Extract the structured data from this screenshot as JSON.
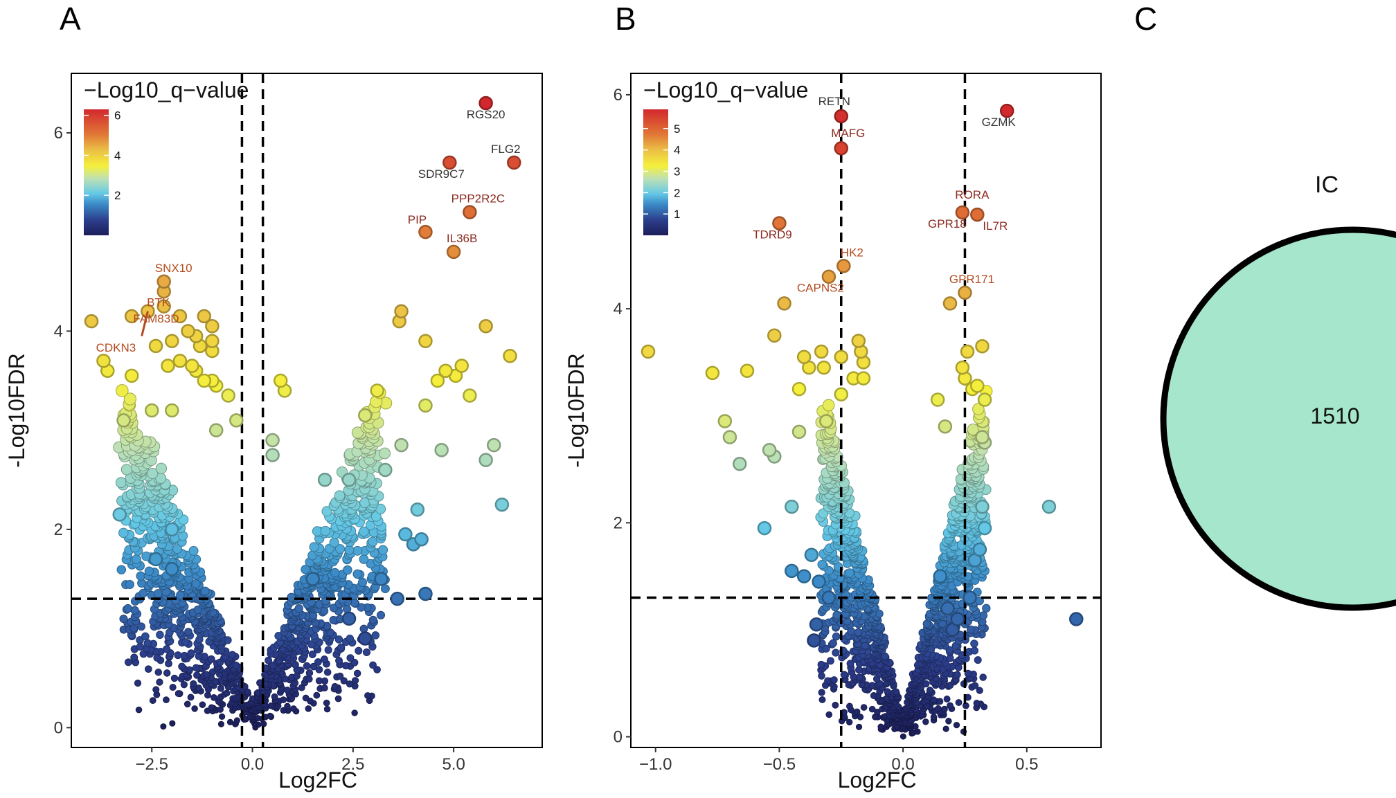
{
  "panels": {
    "a": "A",
    "b": "B",
    "c": "C"
  },
  "chart_data": [
    {
      "type": "scatter",
      "panel": "A",
      "xlabel": "Log2FC",
      "ylabel": "-Log10FDR",
      "xlim": [
        -4.5,
        7.2
      ],
      "ylim": [
        -0.2,
        6.6
      ],
      "xticks": [
        -2.5,
        0.0,
        2.5,
        5.0
      ],
      "xtick_labels": [
        "−2.5",
        "0.0",
        "2.5",
        "5.0"
      ],
      "yticks": [
        0,
        2,
        4,
        6
      ],
      "ytick_labels": [
        "0",
        "2",
        "4",
        "6"
      ],
      "vlines": [
        -0.26,
        0.26
      ],
      "hline": 1.3,
      "legend_title": "−Log10_q−value",
      "legend_ticks": [
        2,
        4,
        6
      ],
      "legend_range": [
        0,
        6.3
      ],
      "points": [
        [
          5.8,
          6.3
        ],
        [
          6.5,
          5.7
        ],
        [
          4.9,
          5.7
        ],
        [
          5.4,
          5.2
        ],
        [
          4.3,
          5.0
        ],
        [
          5.0,
          4.8
        ],
        [
          -2.2,
          4.5
        ],
        [
          -2.2,
          4.4
        ],
        [
          -2.2,
          4.25
        ],
        [
          -2.6,
          4.2
        ],
        [
          -3.0,
          4.15
        ],
        [
          -4.0,
          4.1
        ],
        [
          -1.8,
          4.15
        ],
        [
          -1.2,
          4.15
        ],
        [
          -1.0,
          4.05
        ],
        [
          -1.6,
          4.0
        ],
        [
          -2.0,
          3.9
        ],
        [
          -1.4,
          3.95
        ],
        [
          -1.0,
          3.9
        ],
        [
          -1.3,
          3.85
        ],
        [
          -2.4,
          3.85
        ],
        [
          -1.8,
          3.7
        ],
        [
          -1.0,
          3.8
        ],
        [
          -3.7,
          3.7
        ],
        [
          -3.6,
          3.6
        ],
        [
          -3.0,
          3.55
        ],
        [
          -2.1,
          3.65
        ],
        [
          -1.5,
          3.65
        ],
        [
          -1.4,
          3.6
        ],
        [
          -1.0,
          3.5
        ],
        [
          -0.6,
          3.35
        ],
        [
          -0.9,
          3.45
        ],
        [
          -1.2,
          3.5
        ],
        [
          3.7,
          4.2
        ],
        [
          3.65,
          4.1
        ],
        [
          5.8,
          4.05
        ],
        [
          4.3,
          3.9
        ],
        [
          6.4,
          3.75
        ],
        [
          5.2,
          3.65
        ],
        [
          4.8,
          3.6
        ],
        [
          5.05,
          3.55
        ],
        [
          4.6,
          3.5
        ],
        [
          0.7,
          3.5
        ],
        [
          0.8,
          3.4
        ],
        [
          3.1,
          3.4
        ],
        [
          5.4,
          3.35
        ],
        [
          4.3,
          3.25
        ],
        [
          2.8,
          3.15
        ],
        [
          -3.2,
          3.1
        ],
        [
          -2.5,
          3.2
        ],
        [
          -2.0,
          3.2
        ],
        [
          -0.9,
          3.0
        ],
        [
          -0.4,
          3.1
        ],
        [
          3.7,
          2.85
        ],
        [
          6.0,
          2.85
        ],
        [
          4.7,
          2.8
        ],
        [
          5.8,
          2.7
        ],
        [
          0.5,
          2.9
        ],
        [
          0.5,
          2.75
        ],
        [
          1.8,
          2.5
        ],
        [
          2.4,
          2.5
        ],
        [
          3.3,
          2.6
        ],
        [
          4.1,
          2.2
        ],
        [
          6.2,
          2.25
        ],
        [
          -3.3,
          2.15
        ],
        [
          -2.0,
          2.0
        ],
        [
          4.2,
          1.9
        ],
        [
          4.0,
          1.85
        ],
        [
          3.8,
          1.95
        ],
        [
          4.3,
          1.35
        ],
        [
          3.6,
          1.3
        ],
        [
          -2.4,
          1.7
        ],
        [
          -2.0,
          1.6
        ],
        [
          1.5,
          1.5
        ],
        [
          3.2,
          1.5
        ],
        [
          2.4,
          1.1
        ],
        [
          2.8,
          0.9
        ]
      ],
      "labels": [
        {
          "text": "RGS20",
          "x": 5.8,
          "y": 6.3
        },
        {
          "text": "FLG2",
          "x": 6.5,
          "y": 5.7
        },
        {
          "text": "SDR9C7",
          "x": 4.9,
          "y": 5.7
        },
        {
          "text": "PPP2R2C",
          "x": 5.4,
          "y": 5.2
        },
        {
          "text": "PIP",
          "x": 4.3,
          "y": 5.0
        },
        {
          "text": "IL36B",
          "x": 5.0,
          "y": 4.8
        },
        {
          "text": "SNX10",
          "x": -2.2,
          "y": 4.5
        },
        {
          "text": "BTK",
          "x": -2.2,
          "y": 4.25
        },
        {
          "text": "FAM83D",
          "x": -2.6,
          "y": 4.2
        },
        {
          "text": "CDKN3",
          "x": -2.6,
          "y": 4.2
        }
      ]
    },
    {
      "type": "scatter",
      "panel": "B",
      "xlabel": "Log2FC",
      "ylabel": "-Log10FDR",
      "xlim": [
        -1.1,
        0.8
      ],
      "ylim": [
        -0.1,
        6.2
      ],
      "xticks": [
        -1.0,
        -0.5,
        0.0,
        0.5
      ],
      "xtick_labels": [
        "−1.0",
        "−0.5",
        "0.0",
        "0.5"
      ],
      "yticks": [
        0,
        2,
        4,
        6
      ],
      "ytick_labels": [
        "0",
        "2",
        "4",
        "6"
      ],
      "vlines": [
        -0.25,
        0.25
      ],
      "hline": 1.3,
      "legend_title": "−Log10_q−value",
      "legend_ticks": [
        1,
        2,
        3,
        4,
        5
      ],
      "legend_range": [
        0,
        5.9
      ],
      "points": [
        [
          -0.25,
          5.8
        ],
        [
          0.42,
          5.85
        ],
        [
          -0.25,
          5.5
        ],
        [
          -0.5,
          4.8
        ],
        [
          0.24,
          4.9
        ],
        [
          0.3,
          4.88
        ],
        [
          -0.24,
          4.4
        ],
        [
          -0.3,
          4.3
        ],
        [
          0.25,
          4.15
        ],
        [
          -0.48,
          4.05
        ],
        [
          0.19,
          4.05
        ],
        [
          -1.03,
          3.6
        ],
        [
          -0.52,
          3.75
        ],
        [
          -0.4,
          3.55
        ],
        [
          -0.33,
          3.6
        ],
        [
          -0.38,
          3.45
        ],
        [
          -0.32,
          3.45
        ],
        [
          -0.25,
          3.55
        ],
        [
          -0.18,
          3.7
        ],
        [
          -0.17,
          3.6
        ],
        [
          -0.16,
          3.5
        ],
        [
          -0.2,
          3.35
        ],
        [
          -0.16,
          3.35
        ],
        [
          -0.77,
          3.4
        ],
        [
          -0.63,
          3.42
        ],
        [
          0.26,
          3.6
        ],
        [
          0.32,
          3.65
        ],
        [
          0.24,
          3.45
        ],
        [
          0.25,
          3.35
        ],
        [
          0.3,
          3.28
        ],
        [
          0.28,
          3.25
        ],
        [
          0.33,
          3.15
        ],
        [
          0.14,
          3.15
        ],
        [
          -0.42,
          3.25
        ],
        [
          -0.25,
          3.2
        ],
        [
          -0.72,
          2.95
        ],
        [
          -0.7,
          2.8
        ],
        [
          -0.31,
          2.95
        ],
        [
          -0.42,
          2.85
        ],
        [
          0.32,
          2.8
        ],
        [
          0.33,
          2.75
        ],
        [
          -0.66,
          2.55
        ],
        [
          -0.54,
          2.68
        ],
        [
          -0.52,
          2.62
        ],
        [
          0.17,
          2.9
        ],
        [
          -0.56,
          1.95
        ],
        [
          -0.45,
          2.15
        ],
        [
          0.33,
          1.95
        ],
        [
          0.32,
          2.15
        ],
        [
          0.59,
          2.15
        ],
        [
          0.31,
          1.75
        ],
        [
          0.29,
          1.65
        ],
        [
          0.7,
          1.1
        ],
        [
          -0.45,
          1.55
        ],
        [
          -0.37,
          1.7
        ],
        [
          -0.4,
          1.5
        ],
        [
          -0.34,
          1.45
        ],
        [
          -0.3,
          1.3
        ],
        [
          0.15,
          1.5
        ],
        [
          0.27,
          1.3
        ],
        [
          0.18,
          1.2
        ],
        [
          -0.35,
          1.05
        ],
        [
          -0.36,
          0.9
        ],
        [
          0.22,
          1.1
        ],
        [
          0.2,
          1.0
        ]
      ],
      "labels": [
        {
          "text": "RETN",
          "x": -0.25,
          "y": 5.8
        },
        {
          "text": "GZMK",
          "x": 0.42,
          "y": 5.85
        },
        {
          "text": "MAFG",
          "x": -0.25,
          "y": 5.5
        },
        {
          "text": "TDRD9",
          "x": -0.5,
          "y": 4.8
        },
        {
          "text": "RORA",
          "x": 0.24,
          "y": 4.9
        },
        {
          "text": "GPR18",
          "x": 0.24,
          "y": 4.9
        },
        {
          "text": "IL7R",
          "x": 0.3,
          "y": 4.88
        },
        {
          "text": "HK2",
          "x": -0.24,
          "y": 4.4
        },
        {
          "text": "CAPNS2",
          "x": -0.3,
          "y": 4.3
        },
        {
          "text": "GPR171",
          "x": 0.25,
          "y": 4.15
        }
      ]
    },
    {
      "type": "venn",
      "panel": "C",
      "sets": [
        {
          "name": "IC",
          "count": 1510,
          "color": "#a6e6cc"
        }
      ]
    }
  ]
}
